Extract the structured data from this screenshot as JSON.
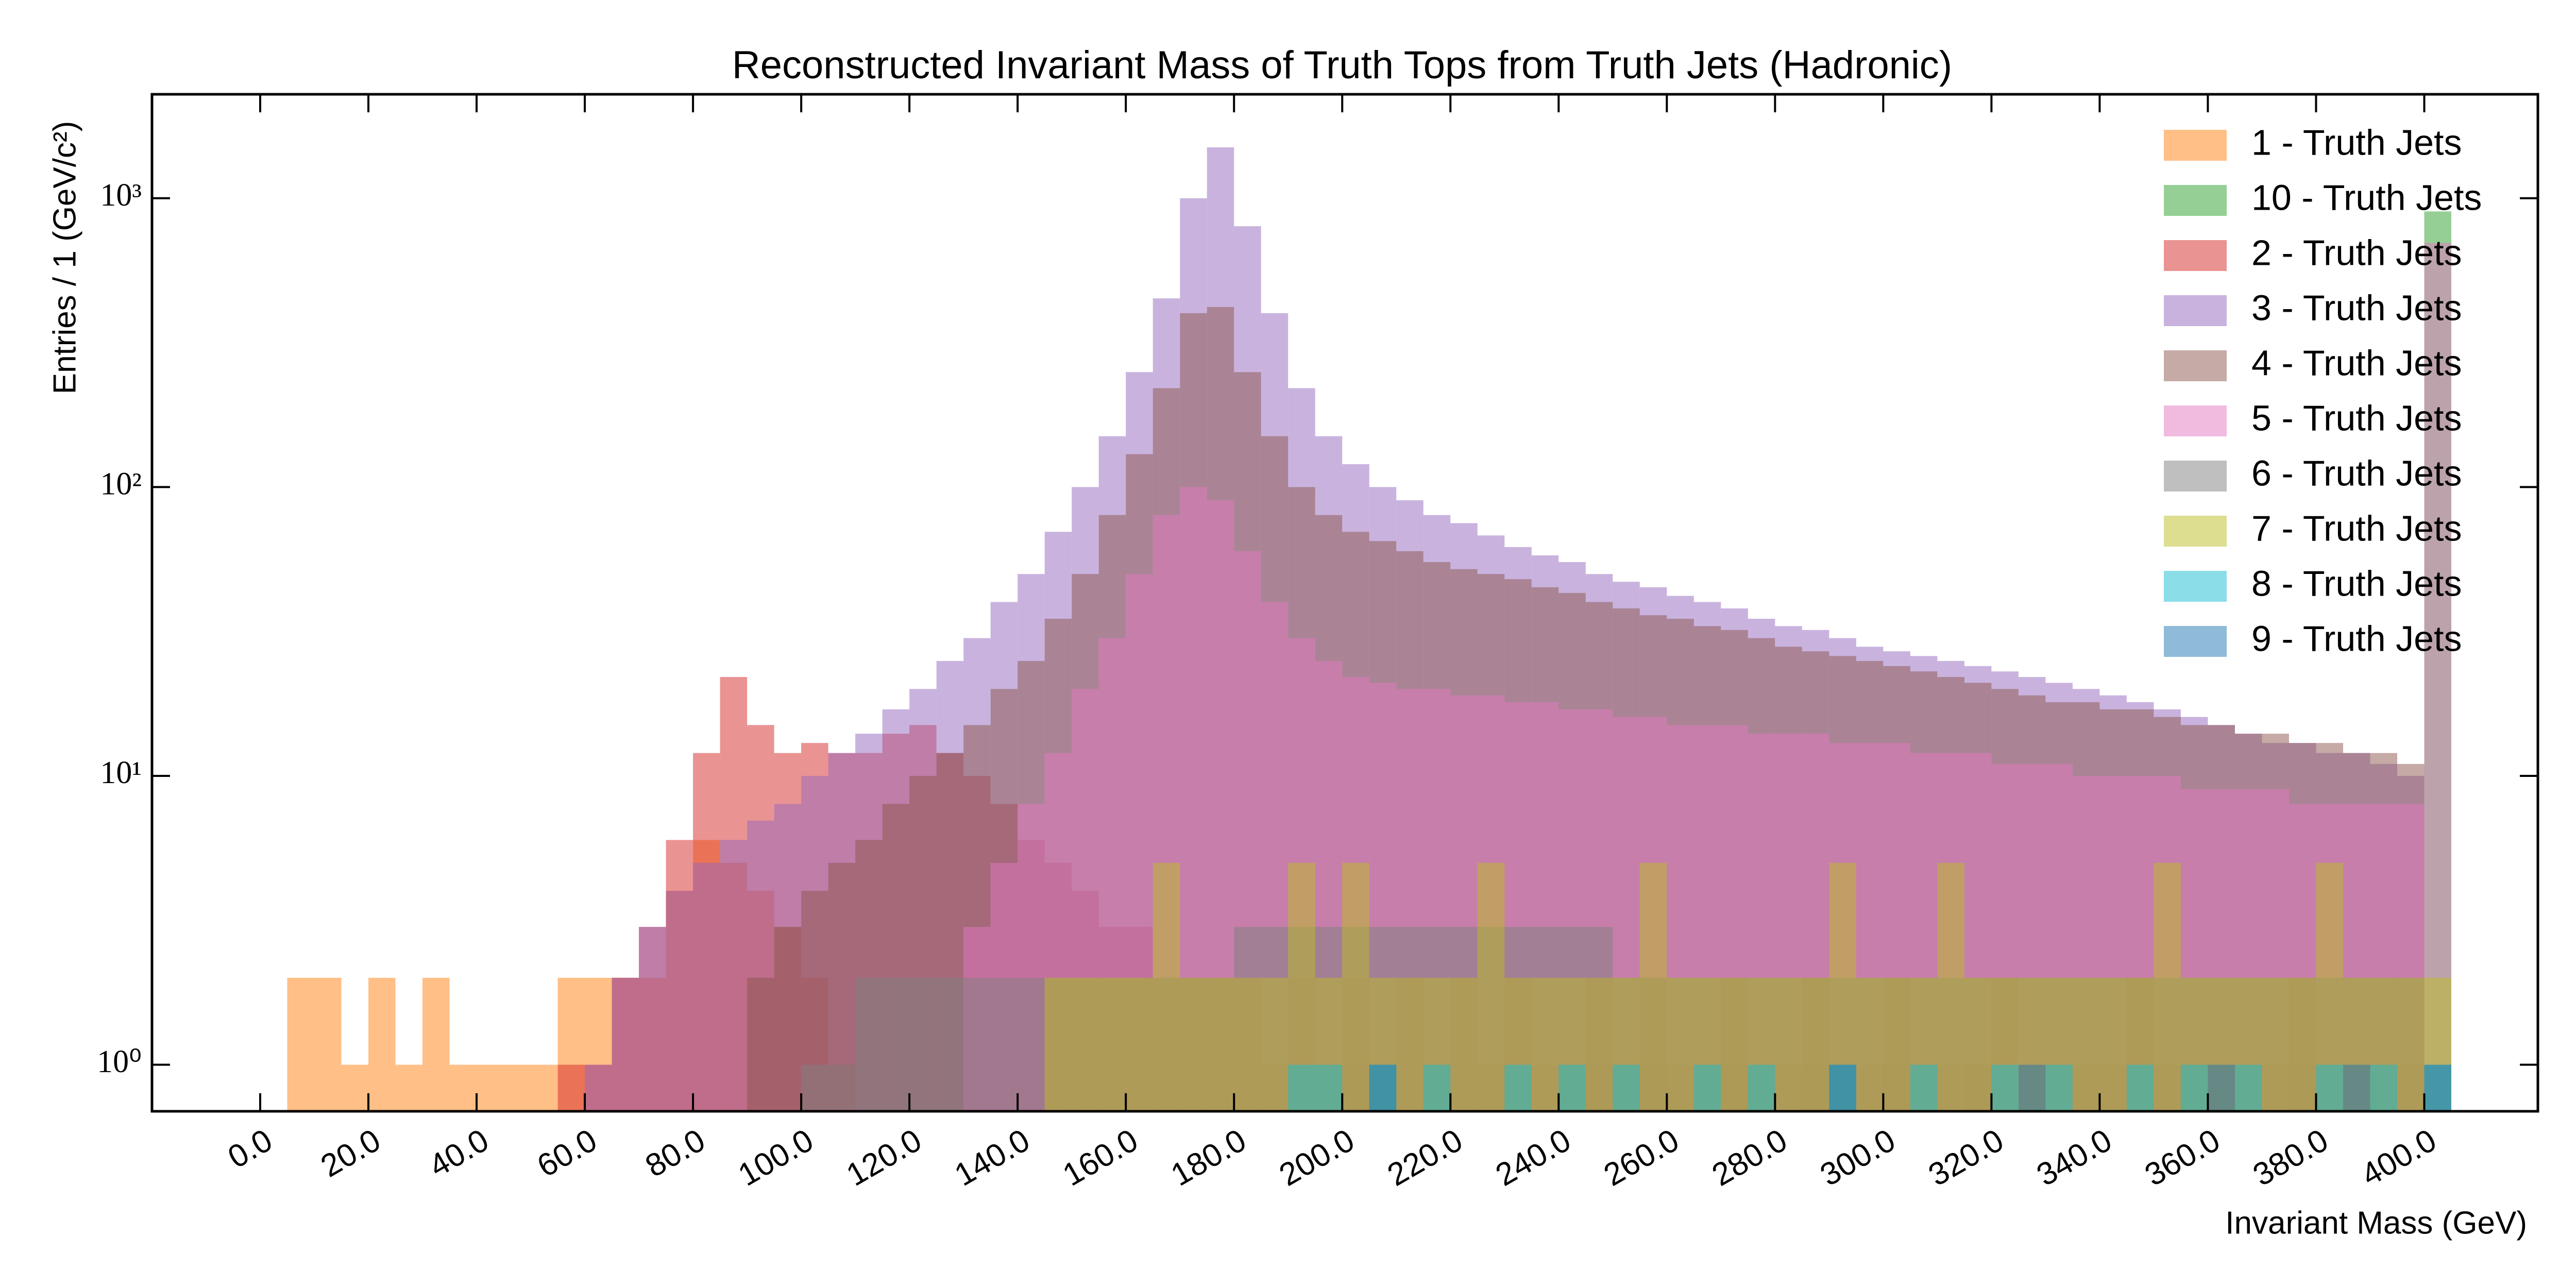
{
  "chart_data": {
    "type": "histogram",
    "title": "Reconstructed Invariant Mass of Truth Tops from Truth Jets (Hadronic)",
    "xlabel": "Invariant Mass (GeV)",
    "ylabel": "Entries / 1 (GeV/c²)",
    "log_y": true,
    "alpha": 0.5,
    "legend": "upper right",
    "xlim": [
      -20,
      421
    ],
    "ylim": [
      0.69,
      2290
    ],
    "xticks": [
      {
        "value": 0,
        "label": "0.0"
      },
      {
        "value": 20,
        "label": "20.0"
      },
      {
        "value": 40,
        "label": "40.0"
      },
      {
        "value": 60,
        "label": "60.0"
      },
      {
        "value": 80,
        "label": "80.0"
      },
      {
        "value": 100,
        "label": "100.0"
      },
      {
        "value": 120,
        "label": "120.0"
      },
      {
        "value": 140,
        "label": "140.0"
      },
      {
        "value": 160,
        "label": "160.0"
      },
      {
        "value": 180,
        "label": "180.0"
      },
      {
        "value": 200,
        "label": "200.0"
      },
      {
        "value": 220,
        "label": "220.0"
      },
      {
        "value": 240,
        "label": "240.0"
      },
      {
        "value": 260,
        "label": "260.0"
      },
      {
        "value": 280,
        "label": "280.0"
      },
      {
        "value": 300,
        "label": "300.0"
      },
      {
        "value": 320,
        "label": "320.0"
      },
      {
        "value": 340,
        "label": "340.0"
      },
      {
        "value": 360,
        "label": "360.0"
      },
      {
        "value": 380,
        "label": "380.0"
      },
      {
        "value": 400,
        "label": "400.0"
      }
    ],
    "yticks": [
      {
        "value": 1,
        "label": "10⁰"
      },
      {
        "value": 10,
        "label": "10¹"
      },
      {
        "value": 100,
        "label": "10²"
      },
      {
        "value": 1000,
        "label": "10³"
      }
    ],
    "bins": [
      0,
      5,
      10,
      15,
      20,
      25,
      30,
      35,
      40,
      45,
      50,
      55,
      60,
      65,
      70,
      75,
      80,
      85,
      90,
      95,
      100,
      105,
      110,
      115,
      120,
      125,
      130,
      135,
      140,
      145,
      150,
      155,
      160,
      165,
      170,
      175,
      180,
      185,
      190,
      195,
      200,
      205,
      210,
      215,
      220,
      225,
      230,
      235,
      240,
      245,
      250,
      255,
      260,
      265,
      270,
      275,
      280,
      285,
      290,
      295,
      300,
      305,
      310,
      315,
      320,
      325,
      330,
      335,
      340,
      345,
      350,
      355,
      360,
      365,
      370,
      375,
      380,
      385,
      390,
      395,
      400,
      405
    ],
    "series": [
      {
        "name": "1 - Truth Jets",
        "color": "#ff7f0e",
        "values": [
          0,
          2,
          2,
          1,
          2,
          1,
          2,
          1,
          1,
          1,
          1,
          2,
          2,
          2,
          2,
          4,
          6,
          5,
          4,
          3,
          2,
          1,
          0,
          0,
          0,
          0,
          0,
          0,
          0,
          0,
          0,
          0,
          0,
          0,
          0,
          0,
          0,
          0,
          0,
          0,
          0,
          0,
          0,
          0,
          0,
          0,
          0,
          0,
          0,
          0,
          0,
          0,
          0,
          0,
          0,
          0,
          0,
          0,
          0,
          0,
          0,
          0,
          0,
          0,
          0,
          0,
          0,
          0,
          0,
          0,
          0,
          0,
          0,
          0,
          0,
          0,
          0,
          0,
          0,
          0,
          0
        ]
      },
      {
        "name": "10 - Truth Jets",
        "color": "#2ca02c",
        "values": [
          0,
          0,
          0,
          0,
          0,
          0,
          0,
          0,
          0,
          0,
          0,
          0,
          0,
          0,
          0,
          0,
          0,
          0,
          0,
          0,
          0,
          0,
          0,
          0,
          0,
          0,
          0,
          0,
          0,
          0,
          0,
          0,
          0,
          0,
          0,
          0,
          0,
          0,
          1,
          0,
          1,
          0,
          0,
          1,
          0,
          0,
          1,
          0,
          0,
          1,
          0,
          1,
          0,
          0,
          1,
          0,
          0,
          1,
          0,
          0,
          1,
          0,
          0,
          1,
          0,
          0,
          1,
          0,
          0,
          1,
          0,
          0,
          1,
          0,
          0,
          1,
          0,
          0,
          1,
          0,
          900
        ]
      },
      {
        "name": "2 - Truth Jets",
        "color": "#d62728",
        "values": [
          0,
          0,
          0,
          0,
          0,
          0,
          0,
          0,
          0,
          0,
          0,
          1,
          1,
          2,
          3,
          6,
          12,
          22,
          15,
          12,
          13,
          12,
          12,
          14,
          15,
          12,
          10,
          8,
          6,
          5,
          4,
          3,
          3,
          2,
          2,
          2,
          2,
          1,
          2,
          1,
          2,
          1,
          2,
          1,
          2,
          1,
          2,
          1,
          1,
          2,
          1,
          2,
          1,
          1,
          2,
          1,
          1,
          2,
          1,
          1,
          2,
          1,
          1,
          1,
          2,
          1,
          1,
          1,
          1,
          2,
          1,
          1,
          1,
          1,
          1,
          2,
          1,
          1,
          1,
          1,
          0
        ]
      },
      {
        "name": "3 - Truth Jets",
        "color": "#9467bd",
        "values": [
          0,
          0,
          0,
          0,
          0,
          0,
          0,
          0,
          0,
          0,
          0,
          0,
          1,
          2,
          3,
          4,
          5,
          6,
          7,
          8,
          10,
          12,
          14,
          17,
          20,
          25,
          30,
          40,
          50,
          70,
          100,
          150,
          250,
          450,
          1000,
          1500,
          800,
          400,
          220,
          150,
          120,
          100,
          90,
          80,
          75,
          68,
          62,
          58,
          55,
          50,
          47,
          45,
          42,
          40,
          38,
          35,
          33,
          32,
          30,
          28,
          27,
          26,
          25,
          24,
          23,
          22,
          21,
          20,
          19,
          18,
          17,
          16,
          15,
          14,
          13,
          13,
          12,
          12,
          11,
          10,
          0
        ]
      },
      {
        "name": "4 - Truth Jets",
        "color": "#8c564b",
        "values": [
          0,
          0,
          0,
          0,
          0,
          0,
          0,
          0,
          0,
          0,
          0,
          0,
          0,
          0,
          0,
          0,
          0,
          0,
          2,
          3,
          4,
          5,
          6,
          8,
          10,
          12,
          15,
          20,
          25,
          35,
          50,
          80,
          130,
          220,
          400,
          420,
          250,
          150,
          100,
          80,
          70,
          65,
          60,
          55,
          52,
          50,
          48,
          45,
          43,
          40,
          38,
          36,
          35,
          33,
          32,
          30,
          28,
          27,
          26,
          25,
          24,
          23,
          22,
          21,
          20,
          19,
          18,
          18,
          17,
          17,
          16,
          15,
          15,
          14,
          14,
          13,
          13,
          12,
          12,
          11,
          0
        ]
      },
      {
        "name": "5 - Truth Jets",
        "color": "#e377c2",
        "values": [
          0,
          0,
          0,
          0,
          0,
          0,
          0,
          0,
          0,
          0,
          0,
          0,
          0,
          0,
          0,
          0,
          0,
          0,
          0,
          0,
          0,
          0,
          0,
          0,
          0,
          0,
          3,
          5,
          8,
          12,
          20,
          30,
          50,
          80,
          100,
          90,
          60,
          40,
          30,
          25,
          22,
          21,
          20,
          20,
          19,
          19,
          18,
          18,
          17,
          17,
          16,
          16,
          15,
          15,
          15,
          14,
          14,
          14,
          13,
          13,
          13,
          12,
          12,
          12,
          11,
          11,
          11,
          10,
          10,
          10,
          10,
          9,
          9,
          9,
          9,
          8,
          8,
          8,
          8,
          8,
          700
        ]
      },
      {
        "name": "6 - Truth Jets",
        "color": "#7f7f7f",
        "values": [
          0,
          0,
          0,
          0,
          0,
          0,
          0,
          0,
          0,
          0,
          0,
          0,
          0,
          0,
          0,
          0,
          0,
          0,
          0,
          0,
          1,
          1,
          2,
          2,
          2,
          2,
          2,
          2,
          2,
          2,
          2,
          2,
          2,
          2,
          2,
          2,
          3,
          3,
          3,
          3,
          3,
          3,
          3,
          3,
          3,
          3,
          3,
          3,
          3,
          3,
          2,
          2,
          2,
          2,
          2,
          2,
          2,
          2,
          2,
          2,
          2,
          2,
          2,
          2,
          2,
          2,
          2,
          2,
          2,
          2,
          2,
          2,
          2,
          2,
          2,
          2,
          2,
          2,
          2,
          2,
          0
        ]
      },
      {
        "name": "7 - Truth Jets",
        "color": "#bcbd22",
        "values": [
          0,
          0,
          0,
          0,
          0,
          0,
          0,
          0,
          0,
          0,
          0,
          0,
          0,
          0,
          0,
          0,
          0,
          0,
          0,
          0,
          0,
          0,
          0,
          0,
          0,
          0,
          0,
          0,
          0,
          2,
          2,
          2,
          2,
          5,
          2,
          2,
          2,
          2,
          5,
          2,
          5,
          2,
          2,
          2,
          2,
          5,
          2,
          2,
          2,
          2,
          2,
          5,
          2,
          2,
          2,
          2,
          2,
          2,
          5,
          2,
          2,
          2,
          5,
          2,
          2,
          2,
          2,
          2,
          2,
          2,
          5,
          2,
          2,
          2,
          2,
          2,
          5,
          2,
          2,
          2,
          2
        ]
      },
      {
        "name": "8 - Truth Jets",
        "color": "#17becf",
        "values": [
          0,
          0,
          0,
          0,
          0,
          0,
          0,
          0,
          0,
          0,
          0,
          0,
          0,
          0,
          0,
          0,
          0,
          0,
          0,
          0,
          0,
          0,
          0,
          0,
          0,
          0,
          0,
          0,
          0,
          0,
          0,
          0,
          0,
          0,
          0,
          0,
          0,
          0,
          1,
          1,
          0,
          1,
          0,
          1,
          0,
          0,
          1,
          0,
          1,
          0,
          1,
          0,
          0,
          1,
          0,
          1,
          0,
          0,
          1,
          0,
          0,
          1,
          0,
          0,
          1,
          0,
          1,
          0,
          0,
          1,
          0,
          1,
          0,
          1,
          0,
          0,
          1,
          0,
          1,
          0,
          1
        ]
      },
      {
        "name": "9 - Truth Jets",
        "color": "#1f77b4",
        "values": [
          0,
          0,
          0,
          0,
          0,
          0,
          0,
          0,
          0,
          0,
          0,
          0,
          0,
          0,
          0,
          0,
          0,
          0,
          0,
          0,
          0,
          0,
          0,
          0,
          0,
          0,
          0,
          0,
          0,
          0,
          0,
          0,
          0,
          0,
          0,
          0,
          0,
          0,
          0,
          0,
          0,
          1,
          0,
          0,
          0,
          0,
          0,
          0,
          0,
          0,
          0,
          0,
          0,
          0,
          0,
          0,
          0,
          0,
          1,
          0,
          0,
          0,
          0,
          0,
          0,
          1,
          0,
          0,
          0,
          0,
          0,
          0,
          1,
          0,
          0,
          0,
          0,
          1,
          0,
          0,
          1
        ]
      }
    ]
  }
}
